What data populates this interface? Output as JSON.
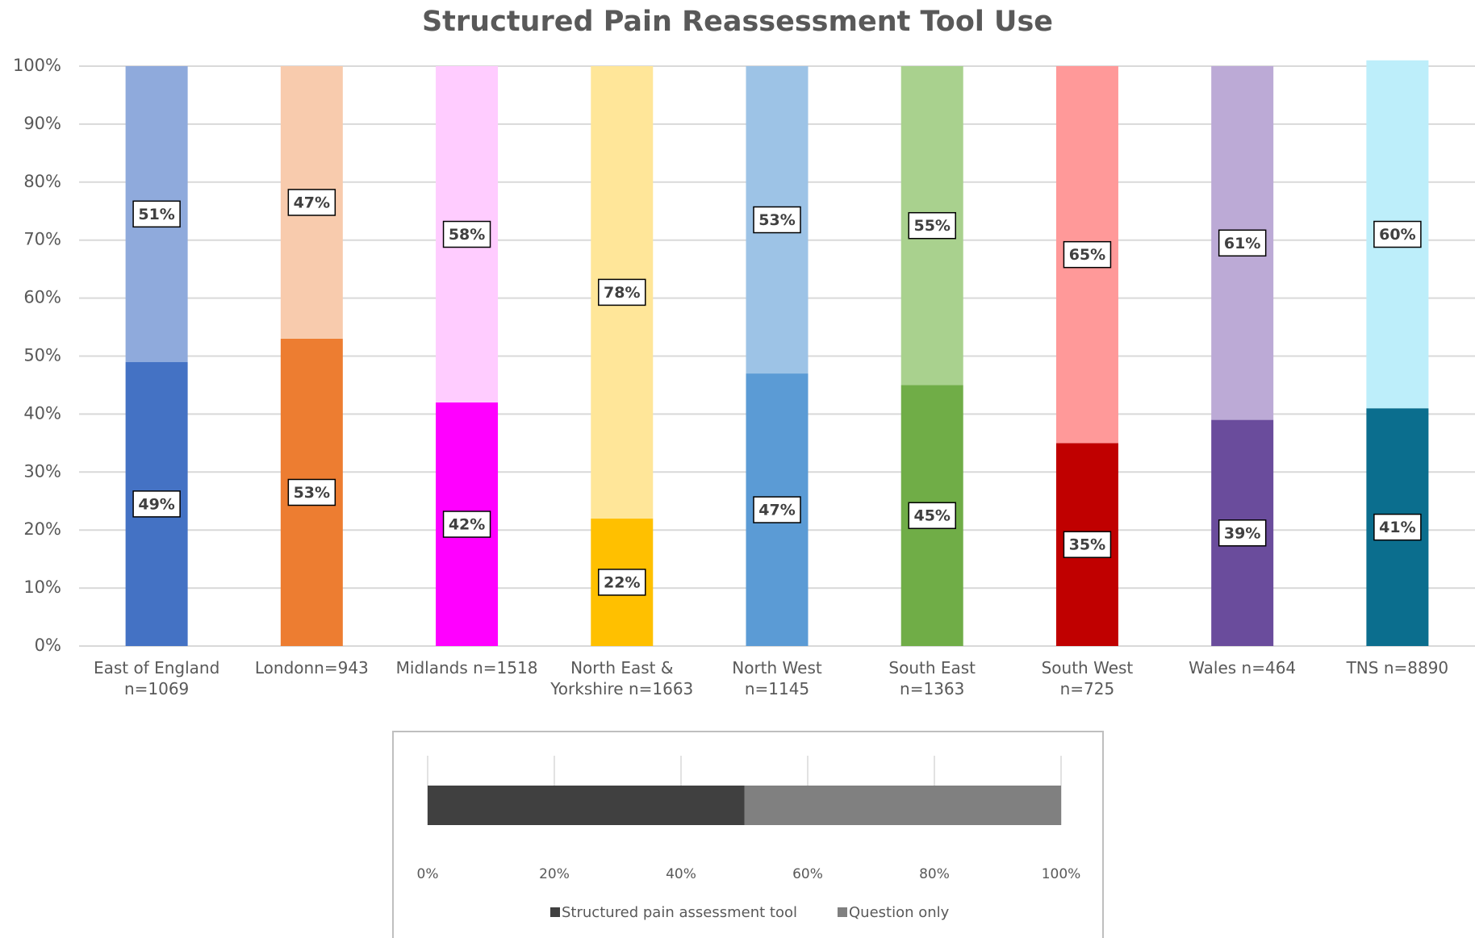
{
  "chart_data": [
    {
      "type": "stacked_bar",
      "title": "Structured Pain Reassessment Tool Use",
      "categories": [
        "East of England\nn=1069",
        "Londonn=943",
        "Midlands n=1518",
        "North East &\nYorkshire n=1663",
        "North West\nn=1145",
        "South East\nn=1363",
        "South West\nn=725",
        "Wales n=464",
        "TNS n=8890"
      ],
      "series": [
        {
          "name": "Structured pain assessment tool",
          "values": [
            49,
            53,
            42,
            22,
            47,
            45,
            35,
            39,
            41
          ],
          "value_labels": [
            "49%",
            "53%",
            "42%",
            "22%",
            "47%",
            "45%",
            "35%",
            "39%",
            "41%"
          ],
          "colors": [
            "#4472c4",
            "#ed7d31",
            "#ff00ff",
            "#ffc000",
            "#5b9bd5",
            "#70ad47",
            "#c00000",
            "#6a4c9c",
            "#0b6e8e"
          ]
        },
        {
          "name": "Question only",
          "values": [
            51,
            47,
            58,
            78,
            53,
            55,
            65,
            61,
            60
          ],
          "value_labels": [
            "51%",
            "47%",
            "58%",
            "78%",
            "53%",
            "55%",
            "65%",
            "61%",
            "60%"
          ],
          "colors": [
            "#8faadc",
            "#f8cbad",
            "#ffccff",
            "#ffe699",
            "#9dc3e6",
            "#a9d18e",
            "#ff9999",
            "#bcaad6",
            "#bdeefa"
          ]
        }
      ],
      "ylim": [
        0,
        100
      ],
      "yticks": [
        {
          "value": 0,
          "label": "0%"
        },
        {
          "value": 10,
          "label": "10%"
        },
        {
          "value": 20,
          "label": "20%"
        },
        {
          "value": 30,
          "label": "30%"
        },
        {
          "value": 40,
          "label": "40%"
        },
        {
          "value": 50,
          "label": "50%"
        },
        {
          "value": 60,
          "label": "60%"
        },
        {
          "value": 70,
          "label": "70%"
        },
        {
          "value": 80,
          "label": "80%"
        },
        {
          "value": 90,
          "label": "90%"
        },
        {
          "value": 100,
          "label": "100%"
        }
      ],
      "grid": true
    },
    {
      "type": "stacked_barh",
      "series": [
        {
          "color": "#404040",
          "values": [
            50
          ]
        },
        {
          "color": "#808080",
          "values": [
            50
          ]
        }
      ],
      "xlim": [
        0,
        100
      ],
      "xticks": [
        {
          "value": 0,
          "label": "0%"
        },
        {
          "value": 20,
          "label": "20%"
        },
        {
          "value": 40,
          "label": "40%"
        },
        {
          "value": 60,
          "label": "60%"
        },
        {
          "value": 80,
          "label": "80%"
        },
        {
          "value": 100,
          "label": "100%"
        }
      ],
      "grid": true
    }
  ]
}
